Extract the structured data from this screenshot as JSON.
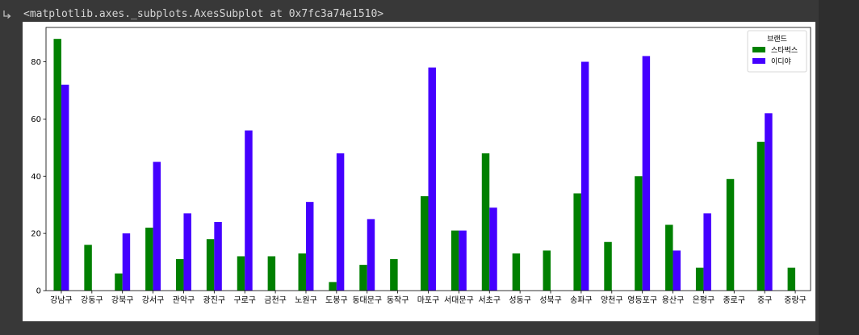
{
  "output": {
    "text": "<matplotlib.axes._subplots.AxesSubplot at 0x7fc3a74e1510>",
    "icon": "output-arrow-icon"
  },
  "chart_data": {
    "type": "bar",
    "categories": [
      "강남구",
      "강동구",
      "강북구",
      "강서구",
      "관악구",
      "광진구",
      "구로구",
      "금천구",
      "노원구",
      "도봉구",
      "동대문구",
      "동작구",
      "마포구",
      "서대문구",
      "서초구",
      "성동구",
      "성북구",
      "송파구",
      "양천구",
      "영등포구",
      "용산구",
      "은평구",
      "종로구",
      "중구",
      "중랑구"
    ],
    "series": [
      {
        "name": "스타벅스",
        "color": "#008000",
        "values": [
          88,
          16,
          6,
          22,
          11,
          18,
          12,
          12,
          13,
          3,
          9,
          11,
          33,
          21,
          48,
          13,
          14,
          34,
          17,
          40,
          23,
          8,
          39,
          52,
          8
        ]
      },
      {
        "name": "이디야",
        "color": "#4400ff",
        "values": [
          72,
          0,
          20,
          45,
          27,
          24,
          56,
          0,
          31,
          48,
          25,
          0,
          78,
          21,
          29,
          0,
          0,
          80,
          0,
          82,
          14,
          27,
          0,
          62,
          0
        ]
      }
    ],
    "ylim": [
      0,
      92
    ],
    "yticks": [
      0,
      20,
      40,
      60,
      80
    ],
    "legend": {
      "title": "브랜드",
      "placement": "top-right"
    },
    "grid": false
  }
}
